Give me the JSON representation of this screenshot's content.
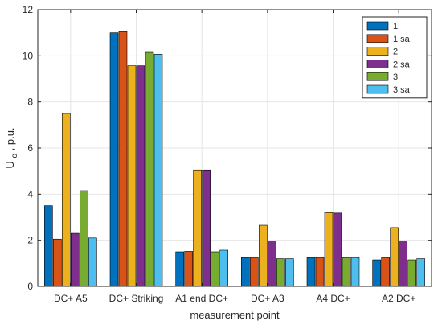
{
  "chart_data": {
    "type": "bar",
    "categories": [
      "DC+ A5",
      "DC+ Striking",
      "A1 end DC+",
      "DC+ A3",
      "A4 DC+",
      "A2 DC+"
    ],
    "xlabel": "measurement point",
    "ylabel": {
      "main": "U",
      "subscript": "o",
      "suffix": ", p.u."
    },
    "ylim": [
      0,
      12
    ],
    "yticks": [
      0,
      2,
      4,
      6,
      8,
      10,
      12
    ],
    "grid": true,
    "legend_position": "top-right",
    "series": [
      {
        "name": "1",
        "color": "#0072BD",
        "values": [
          3.5,
          11.0,
          1.5,
          1.25,
          1.25,
          1.15
        ]
      },
      {
        "name": "1 sa",
        "color": "#D95319",
        "values": [
          2.05,
          11.05,
          1.52,
          1.25,
          1.25,
          1.25
        ]
      },
      {
        "name": "2",
        "color": "#EDB120",
        "values": [
          7.5,
          9.57,
          5.05,
          2.65,
          3.2,
          2.55
        ]
      },
      {
        "name": "2 sa",
        "color": "#7E2F8E",
        "values": [
          2.3,
          9.57,
          5.05,
          1.97,
          3.18,
          1.97
        ]
      },
      {
        "name": "3",
        "color": "#77AC30",
        "values": [
          4.15,
          10.15,
          1.5,
          1.2,
          1.25,
          1.15
        ]
      },
      {
        "name": "3 sa",
        "color": "#4DBEEE",
        "values": [
          2.1,
          10.07,
          1.57,
          1.2,
          1.25,
          1.2
        ]
      }
    ]
  }
}
